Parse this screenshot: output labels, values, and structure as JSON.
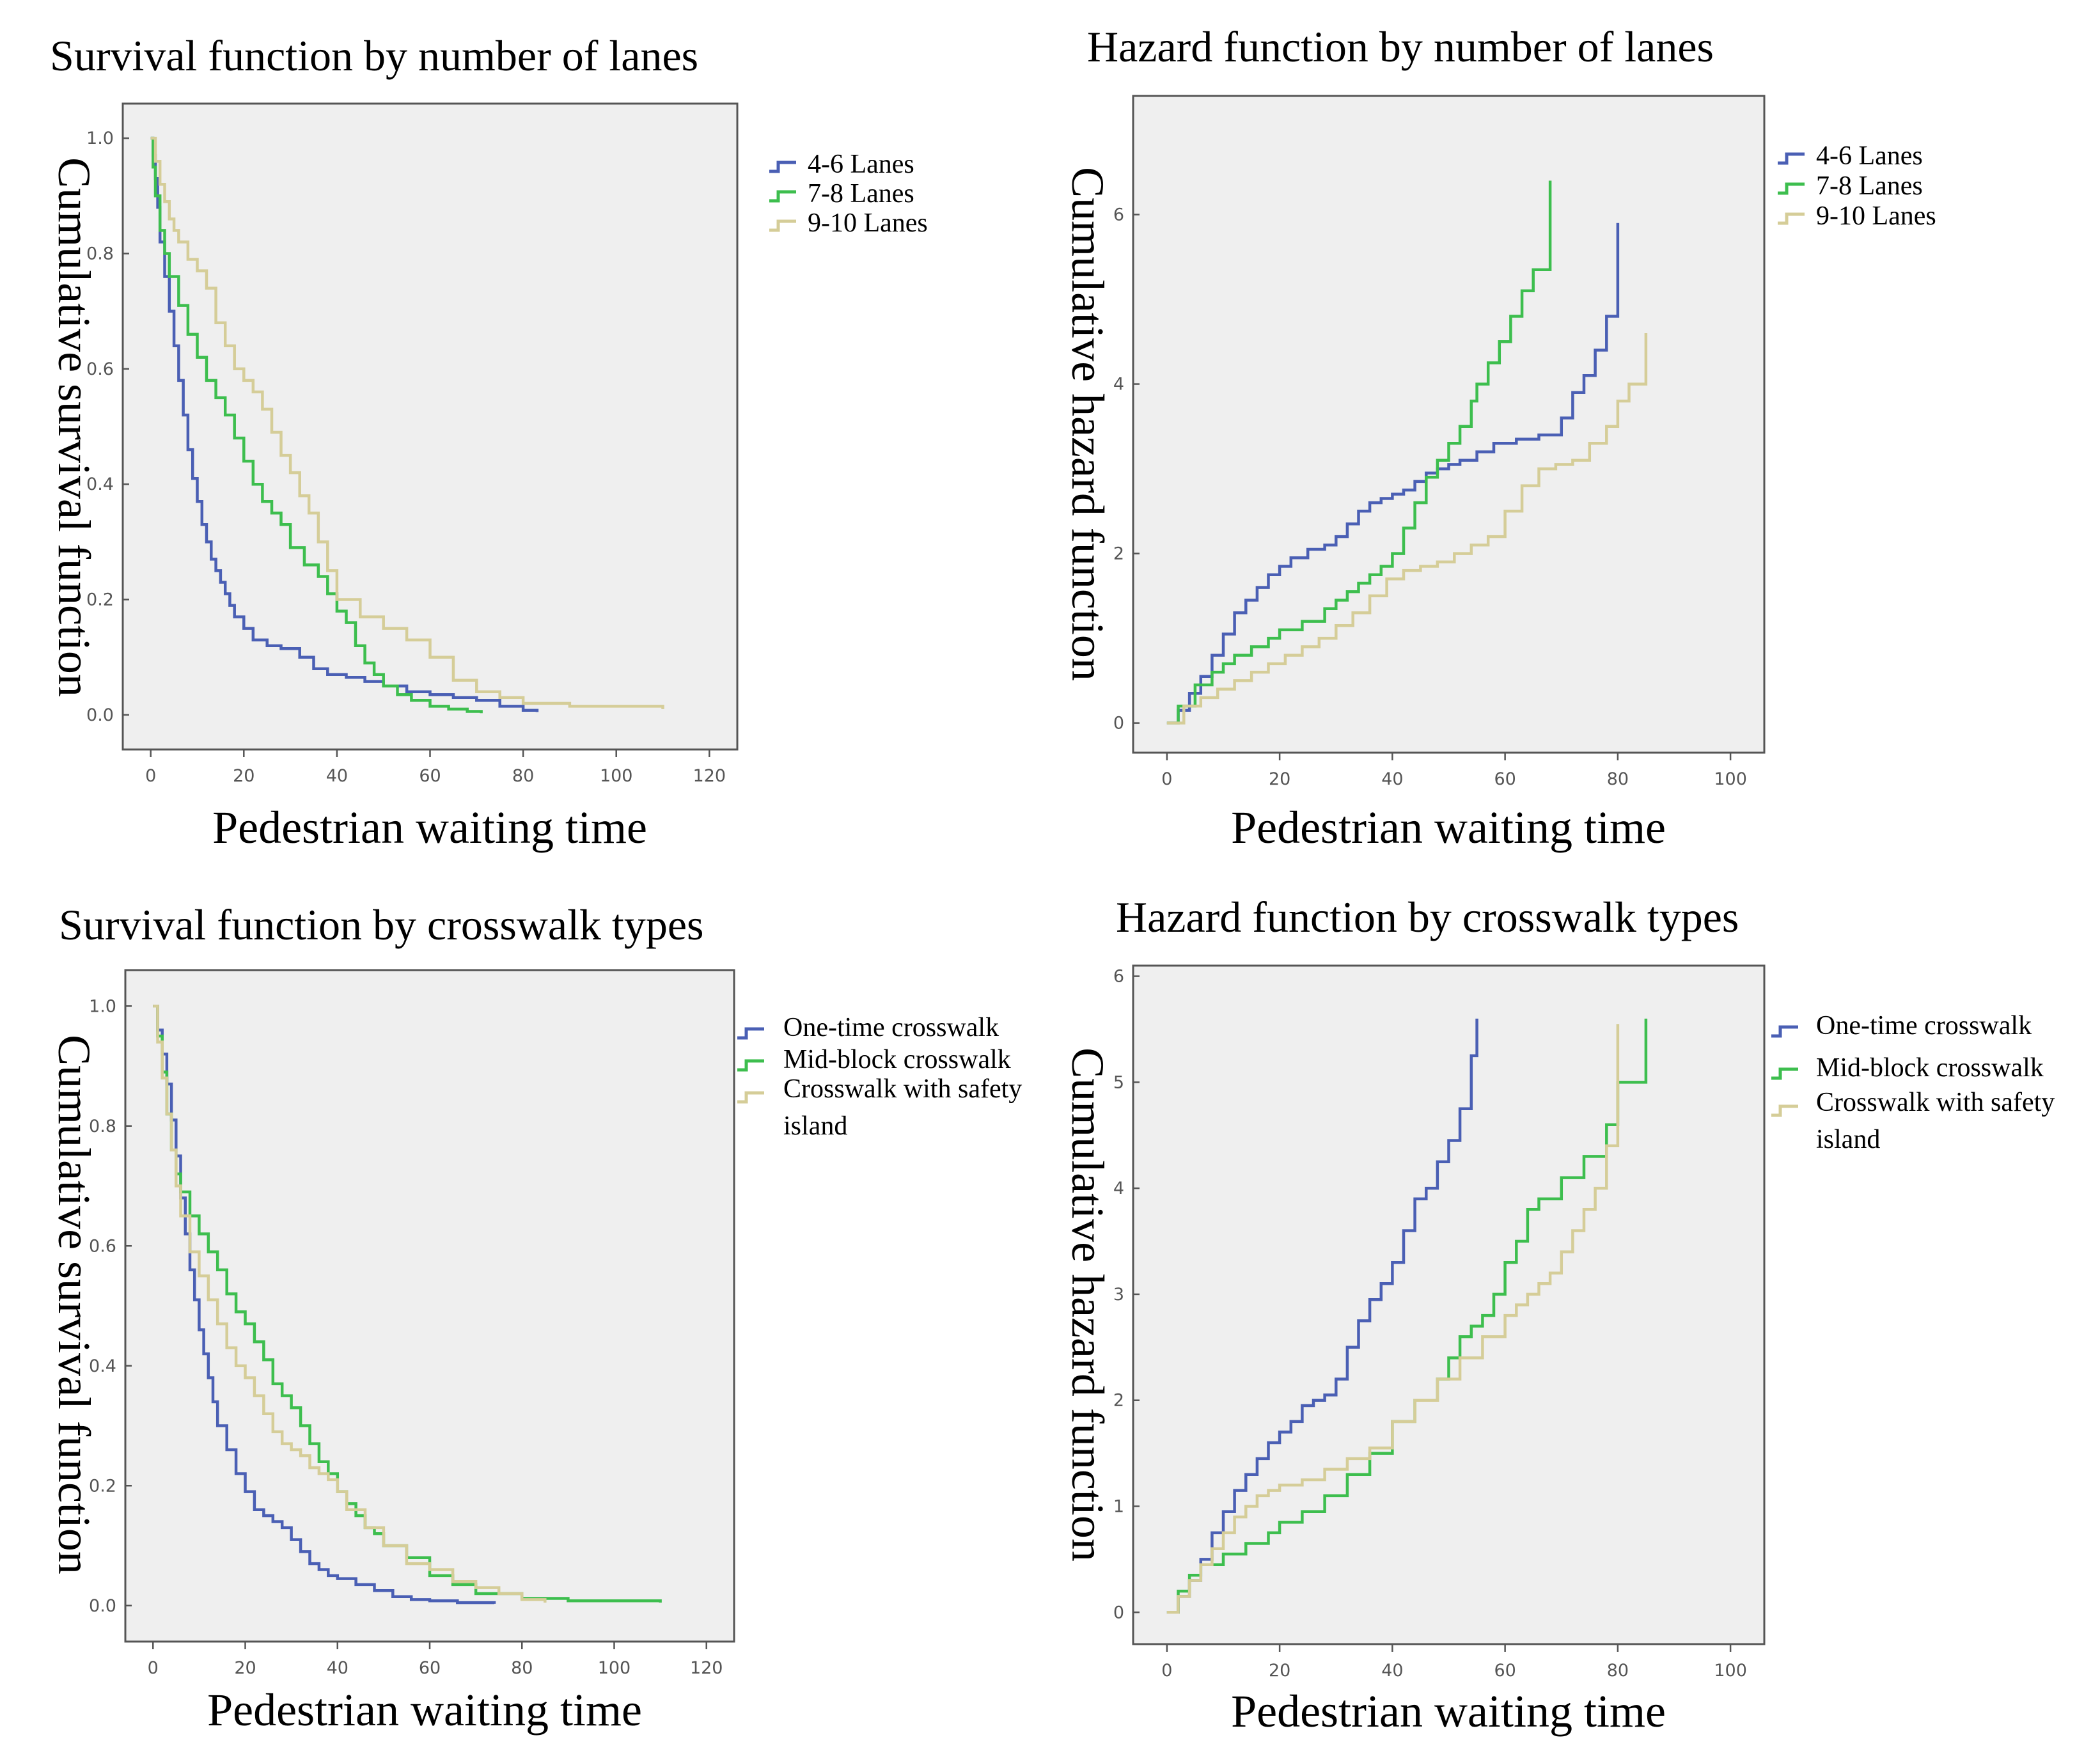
{
  "colors": {
    "blue": "#4a5fb4",
    "green": "#3dbe4e",
    "tan": "#d5cd98"
  },
  "chart_data": [
    {
      "type": "line",
      "step": true,
      "title": "Survival function by number of lanes",
      "xlabel": "Pedestrian waiting time",
      "ylabel": "Cumulative survival function",
      "xlim": [
        -6,
        126
      ],
      "ylim": [
        -0.06,
        1.06
      ],
      "xticks": [
        0,
        20,
        40,
        60,
        80,
        100,
        120
      ],
      "xtick_labels": [
        "0",
        "20",
        "40",
        "60",
        "80",
        "100",
        "120"
      ],
      "yticks": [
        0,
        0.2,
        0.4,
        0.6,
        0.8,
        1.0
      ],
      "ytick_labels": [
        "0.0",
        "0.2",
        "0.4",
        "0.6",
        "0.8",
        "1.0"
      ],
      "legend_position": "right",
      "series": [
        {
          "name": "4-6 Lanes",
          "color": "blue",
          "x": [
            0,
            0.5,
            1,
            1.5,
            2,
            3,
            4,
            5,
            6,
            7,
            8,
            9,
            10,
            11,
            12,
            13,
            14,
            15,
            16,
            17,
            18,
            20,
            22,
            25,
            28,
            32,
            35,
            38,
            42,
            46,
            50,
            55,
            60,
            65,
            70,
            75,
            80,
            83
          ],
          "y": [
            1.0,
            0.97,
            0.93,
            0.88,
            0.82,
            0.76,
            0.7,
            0.64,
            0.58,
            0.52,
            0.46,
            0.41,
            0.37,
            0.33,
            0.3,
            0.27,
            0.25,
            0.23,
            0.21,
            0.19,
            0.17,
            0.15,
            0.13,
            0.12,
            0.115,
            0.1,
            0.08,
            0.07,
            0.065,
            0.058,
            0.05,
            0.04,
            0.035,
            0.03,
            0.025,
            0.015,
            0.008,
            0.005
          ]
        },
        {
          "name": "7-8 Lanes",
          "color": "green",
          "x": [
            0,
            0.5,
            1,
            2,
            3,
            4,
            6,
            8,
            10,
            12,
            14,
            16,
            18,
            20,
            22,
            24,
            26,
            28,
            30,
            33,
            36,
            38,
            40,
            42,
            44,
            46,
            48,
            50,
            53,
            56,
            60,
            64,
            68,
            71
          ],
          "y": [
            1.0,
            0.95,
            0.9,
            0.84,
            0.8,
            0.76,
            0.71,
            0.66,
            0.62,
            0.58,
            0.55,
            0.52,
            0.48,
            0.44,
            0.4,
            0.37,
            0.35,
            0.33,
            0.29,
            0.26,
            0.24,
            0.21,
            0.18,
            0.16,
            0.12,
            0.09,
            0.07,
            0.05,
            0.035,
            0.025,
            0.015,
            0.01,
            0.006,
            0.003
          ]
        },
        {
          "name": "9-10 Lanes",
          "color": "tan",
          "x": [
            0,
            1,
            2,
            3,
            4,
            5,
            6,
            8,
            10,
            12,
            14,
            16,
            18,
            20,
            22,
            24,
            26,
            28,
            30,
            32,
            34,
            36,
            38,
            40,
            45,
            50,
            55,
            60,
            65,
            70,
            75,
            80,
            90,
            110
          ],
          "y": [
            1.0,
            0.96,
            0.92,
            0.89,
            0.86,
            0.84,
            0.82,
            0.79,
            0.77,
            0.74,
            0.68,
            0.64,
            0.6,
            0.58,
            0.56,
            0.53,
            0.49,
            0.45,
            0.42,
            0.38,
            0.35,
            0.3,
            0.25,
            0.2,
            0.17,
            0.15,
            0.13,
            0.1,
            0.06,
            0.04,
            0.03,
            0.02,
            0.015,
            0.01
          ]
        }
      ]
    },
    {
      "type": "line",
      "step": true,
      "title": "Hazard function by number of lanes",
      "xlabel": "Pedestrian waiting time",
      "ylabel": "Cumulative hazard function",
      "xlim": [
        -6,
        106
      ],
      "ylim": [
        -0.35,
        7.4
      ],
      "xticks": [
        0,
        20,
        40,
        60,
        80,
        100
      ],
      "xtick_labels": [
        "0",
        "20",
        "40",
        "60",
        "80",
        "100"
      ],
      "yticks": [
        0,
        2,
        4,
        6
      ],
      "ytick_labels": [
        "0",
        "2",
        "4",
        "6"
      ],
      "legend_position": "right",
      "series": [
        {
          "name": "4-6 Lanes",
          "color": "blue",
          "x": [
            0,
            2,
            4,
            6,
            8,
            10,
            12,
            14,
            16,
            18,
            20,
            22,
            25,
            28,
            30,
            32,
            34,
            36,
            38,
            40,
            42,
            44,
            46,
            48,
            50,
            52,
            55,
            58,
            62,
            66,
            70,
            72,
            74,
            76,
            78,
            80
          ],
          "y": [
            0,
            0.15,
            0.35,
            0.55,
            0.8,
            1.05,
            1.3,
            1.45,
            1.6,
            1.75,
            1.85,
            1.95,
            2.05,
            2.1,
            2.2,
            2.35,
            2.5,
            2.6,
            2.65,
            2.7,
            2.75,
            2.85,
            2.95,
            3.0,
            3.05,
            3.1,
            3.2,
            3.3,
            3.35,
            3.4,
            3.6,
            3.9,
            4.1,
            4.4,
            4.8,
            5.9
          ]
        },
        {
          "name": "7-8 Lanes",
          "color": "green",
          "x": [
            0,
            2,
            5,
            8,
            10,
            12,
            15,
            18,
            20,
            24,
            28,
            30,
            32,
            34,
            36,
            38,
            40,
            42,
            44,
            46,
            48,
            50,
            52,
            54,
            55,
            57,
            59,
            61,
            63,
            65,
            68
          ],
          "y": [
            0,
            0.2,
            0.45,
            0.6,
            0.7,
            0.8,
            0.9,
            1.0,
            1.1,
            1.2,
            1.35,
            1.45,
            1.55,
            1.65,
            1.75,
            1.85,
            2.0,
            2.3,
            2.6,
            2.9,
            3.1,
            3.3,
            3.5,
            3.8,
            4.0,
            4.25,
            4.5,
            4.8,
            5.1,
            5.35,
            6.4
          ]
        },
        {
          "name": "9-10 Lanes",
          "color": "tan",
          "x": [
            0,
            3,
            6,
            9,
            12,
            15,
            18,
            21,
            24,
            27,
            30,
            33,
            36,
            39,
            42,
            45,
            48,
            51,
            54,
            57,
            60,
            63,
            66,
            69,
            72,
            75,
            78,
            80,
            82,
            85
          ],
          "y": [
            0,
            0.2,
            0.3,
            0.4,
            0.5,
            0.6,
            0.7,
            0.8,
            0.9,
            1.0,
            1.15,
            1.3,
            1.5,
            1.7,
            1.8,
            1.85,
            1.9,
            2.0,
            2.1,
            2.2,
            2.5,
            2.8,
            3.0,
            3.05,
            3.1,
            3.3,
            3.5,
            3.8,
            4.0,
            4.6
          ]
        }
      ]
    },
    {
      "type": "line",
      "step": true,
      "title": "Survival function by crosswalk types",
      "xlabel": "Pedestrian waiting time",
      "ylabel": "Cumulative survival function",
      "xlim": [
        -6,
        126
      ],
      "ylim": [
        -0.06,
        1.06
      ],
      "xticks": [
        0,
        20,
        40,
        60,
        80,
        100,
        120
      ],
      "xtick_labels": [
        "0",
        "20",
        "40",
        "60",
        "80",
        "100",
        "120"
      ],
      "yticks": [
        0,
        0.2,
        0.4,
        0.6,
        0.8,
        1.0
      ],
      "ytick_labels": [
        "0.0",
        "0.2",
        "0.4",
        "0.6",
        "0.8",
        "1.0"
      ],
      "legend_position": "right",
      "series": [
        {
          "name": "One-time crosswalk",
          "color": "blue",
          "x": [
            0,
            1,
            2,
            3,
            4,
            5,
            6,
            7,
            8,
            9,
            10,
            11,
            12,
            13,
            14,
            16,
            18,
            20,
            22,
            24,
            26,
            28,
            30,
            32,
            34,
            36,
            38,
            40,
            44,
            48,
            52,
            56,
            60,
            66,
            74
          ],
          "y": [
            1.0,
            0.96,
            0.92,
            0.87,
            0.81,
            0.75,
            0.68,
            0.62,
            0.56,
            0.51,
            0.46,
            0.42,
            0.38,
            0.34,
            0.3,
            0.26,
            0.22,
            0.19,
            0.16,
            0.15,
            0.14,
            0.13,
            0.11,
            0.09,
            0.07,
            0.06,
            0.05,
            0.045,
            0.035,
            0.025,
            0.015,
            0.01,
            0.008,
            0.005,
            0.003
          ]
        },
        {
          "name": "Mid-block crosswalk",
          "color": "green",
          "x": [
            0,
            1,
            2,
            3,
            4,
            5,
            6,
            8,
            10,
            12,
            14,
            16,
            18,
            20,
            22,
            24,
            26,
            28,
            30,
            32,
            34,
            36,
            38,
            40,
            42,
            44,
            46,
            48,
            50,
            55,
            60,
            65,
            70,
            80,
            90,
            110
          ],
          "y": [
            1.0,
            0.95,
            0.89,
            0.82,
            0.76,
            0.72,
            0.69,
            0.65,
            0.62,
            0.59,
            0.56,
            0.52,
            0.49,
            0.47,
            0.44,
            0.41,
            0.37,
            0.35,
            0.33,
            0.3,
            0.27,
            0.24,
            0.22,
            0.19,
            0.17,
            0.15,
            0.13,
            0.12,
            0.1,
            0.08,
            0.05,
            0.035,
            0.02,
            0.012,
            0.008,
            0.005
          ]
        },
        {
          "name": "Crosswalk with safety island",
          "color": "tan",
          "x": [
            0,
            1,
            2,
            3,
            4,
            5,
            6,
            8,
            10,
            12,
            14,
            16,
            18,
            20,
            22,
            24,
            26,
            28,
            30,
            32,
            34,
            36,
            38,
            40,
            42,
            46,
            50,
            55,
            60,
            65,
            70,
            75,
            80,
            85
          ],
          "y": [
            1.0,
            0.94,
            0.88,
            0.82,
            0.76,
            0.7,
            0.65,
            0.59,
            0.55,
            0.51,
            0.47,
            0.43,
            0.4,
            0.38,
            0.35,
            0.32,
            0.29,
            0.27,
            0.26,
            0.25,
            0.23,
            0.22,
            0.21,
            0.19,
            0.16,
            0.13,
            0.1,
            0.07,
            0.06,
            0.04,
            0.03,
            0.02,
            0.01,
            0.005
          ]
        }
      ]
    },
    {
      "type": "line",
      "step": true,
      "title": "Hazard function by crosswalk types",
      "xlabel": "Pedestrian waiting time",
      "ylabel": "Cumulative hazard function",
      "xlim": [
        -6,
        106
      ],
      "ylim": [
        -0.3,
        6.1
      ],
      "xticks": [
        0,
        20,
        40,
        60,
        80,
        100
      ],
      "xtick_labels": [
        "0",
        "20",
        "40",
        "60",
        "80",
        "100"
      ],
      "yticks": [
        0,
        1,
        2,
        3,
        4,
        5,
        6
      ],
      "ytick_labels": [
        "0",
        "1",
        "2",
        "3",
        "4",
        "5",
        "6"
      ],
      "legend_position": "right",
      "series": [
        {
          "name": "One-time crosswalk",
          "color": "blue",
          "x": [
            0,
            2,
            4,
            6,
            8,
            10,
            12,
            14,
            16,
            18,
            20,
            22,
            24,
            26,
            28,
            30,
            32,
            34,
            36,
            38,
            40,
            42,
            44,
            46,
            48,
            50,
            52,
            54,
            55
          ],
          "y": [
            0,
            0.15,
            0.3,
            0.5,
            0.75,
            0.95,
            1.15,
            1.3,
            1.45,
            1.6,
            1.7,
            1.8,
            1.95,
            2.0,
            2.05,
            2.2,
            2.5,
            2.75,
            2.95,
            3.1,
            3.3,
            3.6,
            3.9,
            4.0,
            4.25,
            4.45,
            4.75,
            5.25,
            5.6
          ]
        },
        {
          "name": "Mid-block crosswalk",
          "color": "green",
          "x": [
            0,
            2,
            4,
            6,
            10,
            14,
            18,
            20,
            24,
            28,
            32,
            36,
            40,
            44,
            48,
            50,
            52,
            54,
            56,
            58,
            60,
            62,
            64,
            66,
            70,
            74,
            78,
            80,
            85
          ],
          "y": [
            0,
            0.2,
            0.35,
            0.45,
            0.55,
            0.65,
            0.75,
            0.85,
            0.95,
            1.1,
            1.3,
            1.5,
            1.8,
            2.0,
            2.2,
            2.4,
            2.6,
            2.7,
            2.8,
            3.0,
            3.3,
            3.5,
            3.8,
            3.9,
            4.1,
            4.3,
            4.6,
            5.0,
            5.6
          ]
        },
        {
          "name": "Crosswalk with safety island",
          "color": "tan",
          "x": [
            0,
            2,
            4,
            6,
            8,
            10,
            12,
            14,
            16,
            18,
            20,
            24,
            28,
            32,
            36,
            40,
            44,
            48,
            52,
            56,
            60,
            62,
            64,
            66,
            68,
            70,
            72,
            74,
            76,
            78,
            80
          ],
          "y": [
            0,
            0.15,
            0.3,
            0.45,
            0.6,
            0.75,
            0.9,
            1.0,
            1.1,
            1.15,
            1.2,
            1.25,
            1.35,
            1.45,
            1.55,
            1.8,
            2.0,
            2.2,
            2.4,
            2.6,
            2.8,
            2.9,
            3.0,
            3.1,
            3.2,
            3.4,
            3.6,
            3.8,
            4.0,
            4.4,
            5.55
          ]
        }
      ]
    }
  ]
}
